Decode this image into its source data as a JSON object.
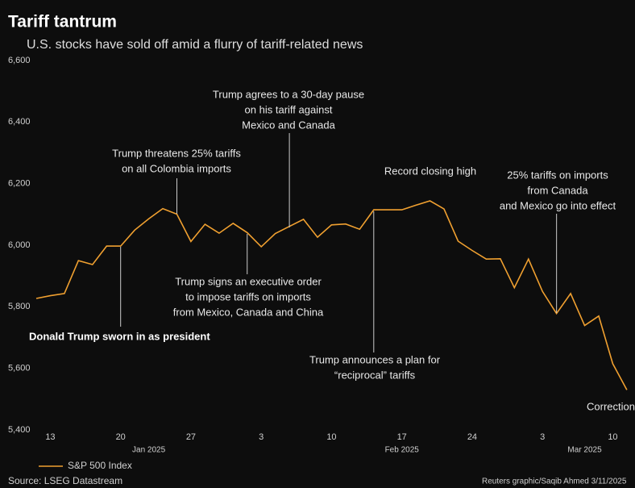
{
  "chart_data": {
    "type": "line",
    "title": "Tariff tantrum",
    "subtitle": "U.S. stocks have sold off amid a flurry of tariff-related news",
    "x": [
      "2025-01-10",
      "2025-01-13",
      "2025-01-14",
      "2025-01-15",
      "2025-01-16",
      "2025-01-17",
      "2025-01-20",
      "2025-01-21",
      "2025-01-22",
      "2025-01-23",
      "2025-01-24",
      "2025-01-27",
      "2025-01-28",
      "2025-01-29",
      "2025-01-30",
      "2025-01-31",
      "2025-02-03",
      "2025-02-04",
      "2025-02-05",
      "2025-02-06",
      "2025-02-07",
      "2025-02-10",
      "2025-02-11",
      "2025-02-12",
      "2025-02-13",
      "2025-02-14",
      "2025-02-17",
      "2025-02-18",
      "2025-02-19",
      "2025-02-20",
      "2025-02-21",
      "2025-02-24",
      "2025-02-25",
      "2025-02-26",
      "2025-02-27",
      "2025-02-28",
      "2025-03-03",
      "2025-03-04",
      "2025-03-05",
      "2025-03-06",
      "2025-03-07",
      "2025-03-10",
      "2025-03-11"
    ],
    "series": [
      {
        "name": "S&P 500 Index",
        "color": "#f0a030",
        "values": [
          5827,
          5836,
          5843,
          5950,
          5937,
          5997,
          5997,
          6049,
          6086,
          6119,
          6101,
          6012,
          6068,
          6039,
          6071,
          6041,
          5995,
          6038,
          6061,
          6084,
          6026,
          6066,
          6069,
          6052,
          6115,
          6115,
          6115,
          6130,
          6144,
          6118,
          6013,
          5983,
          5955,
          5956,
          5862,
          5955,
          5850,
          5778,
          5843,
          5739,
          5770,
          5615,
          5530
        ]
      }
    ],
    "xticks": [
      {
        "value": "2025-01-13",
        "label": "13"
      },
      {
        "value": "2025-01-20",
        "label": "20"
      },
      {
        "value": "2025-01-27",
        "label": "27"
      },
      {
        "value": "2025-02-03",
        "label": "3"
      },
      {
        "value": "2025-02-10",
        "label": "10"
      },
      {
        "value": "2025-02-17",
        "label": "17"
      },
      {
        "value": "2025-02-24",
        "label": "24"
      },
      {
        "value": "2025-03-03",
        "label": "3"
      },
      {
        "value": "2025-03-10",
        "label": "10"
      }
    ],
    "month_labels": [
      {
        "value": "2025-01-22",
        "label": "Jan 2025"
      },
      {
        "value": "2025-02-17",
        "label": "Feb 2025"
      },
      {
        "value": "2025-03-06",
        "label": "Mar 2025"
      }
    ],
    "ylim": [
      5400,
      6600
    ],
    "yticks": [
      {
        "value": 5400,
        "label": "5,400"
      },
      {
        "value": 5600,
        "label": "5,600"
      },
      {
        "value": 5800,
        "label": "5,800"
      },
      {
        "value": 6000,
        "label": "6,000"
      },
      {
        "value": 6200,
        "label": "6,200"
      },
      {
        "value": 6400,
        "label": "6,400"
      },
      {
        "value": 6600,
        "label": "6,600"
      }
    ],
    "grid": false,
    "annotations": [
      {
        "x": "2025-01-20",
        "lines": [
          "Donald Trump sworn in as president"
        ]
      },
      {
        "x": "2025-01-24",
        "lines": [
          "Trump threatens 25% tariffs",
          "on all Colombia imports"
        ]
      },
      {
        "x": "2025-01-31",
        "lines": [
          "Trump signs an executive order",
          "to impose tariffs on imports",
          "from Mexico, Canada and China"
        ]
      },
      {
        "x": "2025-02-05",
        "lines": [
          "Trump agrees to a 30-day pause",
          "on his tariff against",
          "Mexico and Canada"
        ]
      },
      {
        "x": "2025-02-19",
        "lines": [
          "Record closing high"
        ]
      },
      {
        "x": "2025-02-13",
        "lines": [
          "Trump announces a plan for",
          "“reciprocal” tariffs"
        ]
      },
      {
        "x": "2025-03-04",
        "lines": [
          "25% tariffs on imports",
          "from Canada",
          "and Mexico go into effect"
        ]
      },
      {
        "x": "2025-03-11",
        "lines": [
          "Correction"
        ]
      }
    ],
    "source": "Source: LSEG Datastream",
    "credit": "Reuters graphic/Saqib Ahmed 3/11/2025"
  }
}
